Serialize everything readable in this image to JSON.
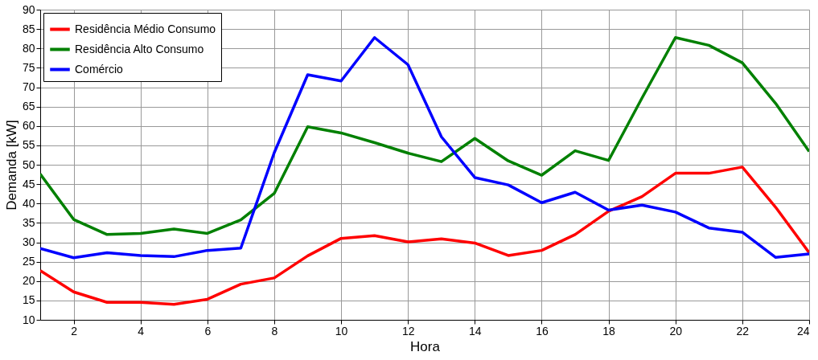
{
  "chart_data": {
    "type": "line",
    "xlabel": "Hora",
    "ylabel": "Demanda [kW]",
    "x": [
      1,
      2,
      3,
      4,
      5,
      6,
      7,
      8,
      9,
      10,
      11,
      12,
      13,
      14,
      15,
      16,
      17,
      18,
      19,
      20,
      21,
      22,
      23,
      24
    ],
    "series": [
      {
        "name": "Residência Médio Consumo",
        "color": "#ff0000",
        "values": [
          22.7,
          17.2,
          14.5,
          14.5,
          14,
          15.3,
          19.2,
          20.8,
          26.5,
          31,
          31.7,
          30.1,
          30.9,
          29.8,
          26.6,
          27.9,
          32,
          38,
          41.8,
          47.8,
          47.8,
          49.4,
          39,
          27.3
        ]
      },
      {
        "name": "Residência Alto Consumo",
        "color": "#008000",
        "values": [
          47.6,
          35.9,
          32,
          32.3,
          33.4,
          32.3,
          35.8,
          42.6,
          59.8,
          58.2,
          55.7,
          53,
          50.8,
          56.8,
          51,
          47.3,
          53.6,
          51.1,
          67.2,
          82.8,
          80.8,
          76.3,
          65.8,
          53.4
        ]
      },
      {
        "name": "Comércio",
        "color": "#0000ff",
        "values": [
          28.4,
          26,
          27.3,
          26.6,
          26.3,
          27.9,
          28.5,
          53.1,
          73.2,
          71.6,
          82.8,
          75.8,
          57.2,
          46.7,
          44.8,
          40.2,
          42.9,
          38.3,
          39.6,
          37.8,
          33.7,
          32.6,
          26.1,
          27
        ]
      }
    ],
    "xlim": [
      1,
      24
    ],
    "xticks": [
      2,
      4,
      6,
      8,
      10,
      12,
      14,
      16,
      18,
      20,
      22,
      24
    ],
    "ylim": [
      10,
      90
    ],
    "yticks": [
      10,
      15,
      20,
      25,
      30,
      35,
      40,
      45,
      50,
      55,
      60,
      65,
      70,
      75,
      80,
      85,
      90
    ],
    "grid": true,
    "legend": "top left",
    "marker": "none",
    "line_style": "solid"
  }
}
